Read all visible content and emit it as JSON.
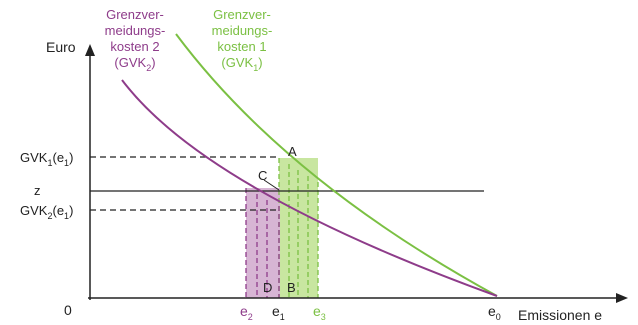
{
  "axes": {
    "y_label": "Euro",
    "x_label": "Emissionen e",
    "origin": "0"
  },
  "curves": {
    "gvk2": {
      "line1": "Grenzver-",
      "line2": "meidungs-",
      "line3": "kosten 2",
      "line4_main": "(GVK",
      "line4_sub": "2",
      "line4_end": ")",
      "color": "#8e3c8a"
    },
    "gvk1": {
      "line1": "Grenzver-",
      "line2": "meidungs-",
      "line3": "kosten 1",
      "line4_main": "(GVK",
      "line4_sub": "1",
      "line4_end": ")",
      "color": "#7bc043"
    }
  },
  "y_ticks": {
    "gvk1_main": "GVK",
    "gvk1_sub": "1",
    "gvk1_end": "(e",
    "gvk1_sub2": "1",
    "gvk1_close": ")",
    "z": "z",
    "gvk2_main": "GVK",
    "gvk2_sub": "2",
    "gvk2_end": "(e",
    "gvk2_sub2": "1",
    "gvk2_close": ")"
  },
  "x_ticks": {
    "e2_main": "e",
    "e2_sub": "2",
    "e1_main": "e",
    "e1_sub": "1",
    "e3_main": "e",
    "e3_sub": "3",
    "e0_main": "e",
    "e0_sub": "0"
  },
  "points": {
    "A": "A",
    "B": "B",
    "C": "C",
    "D": "D"
  },
  "colors": {
    "green_area": "#c8e6a0",
    "purple_area": "#d7b5d4",
    "axis": "#222222"
  }
}
